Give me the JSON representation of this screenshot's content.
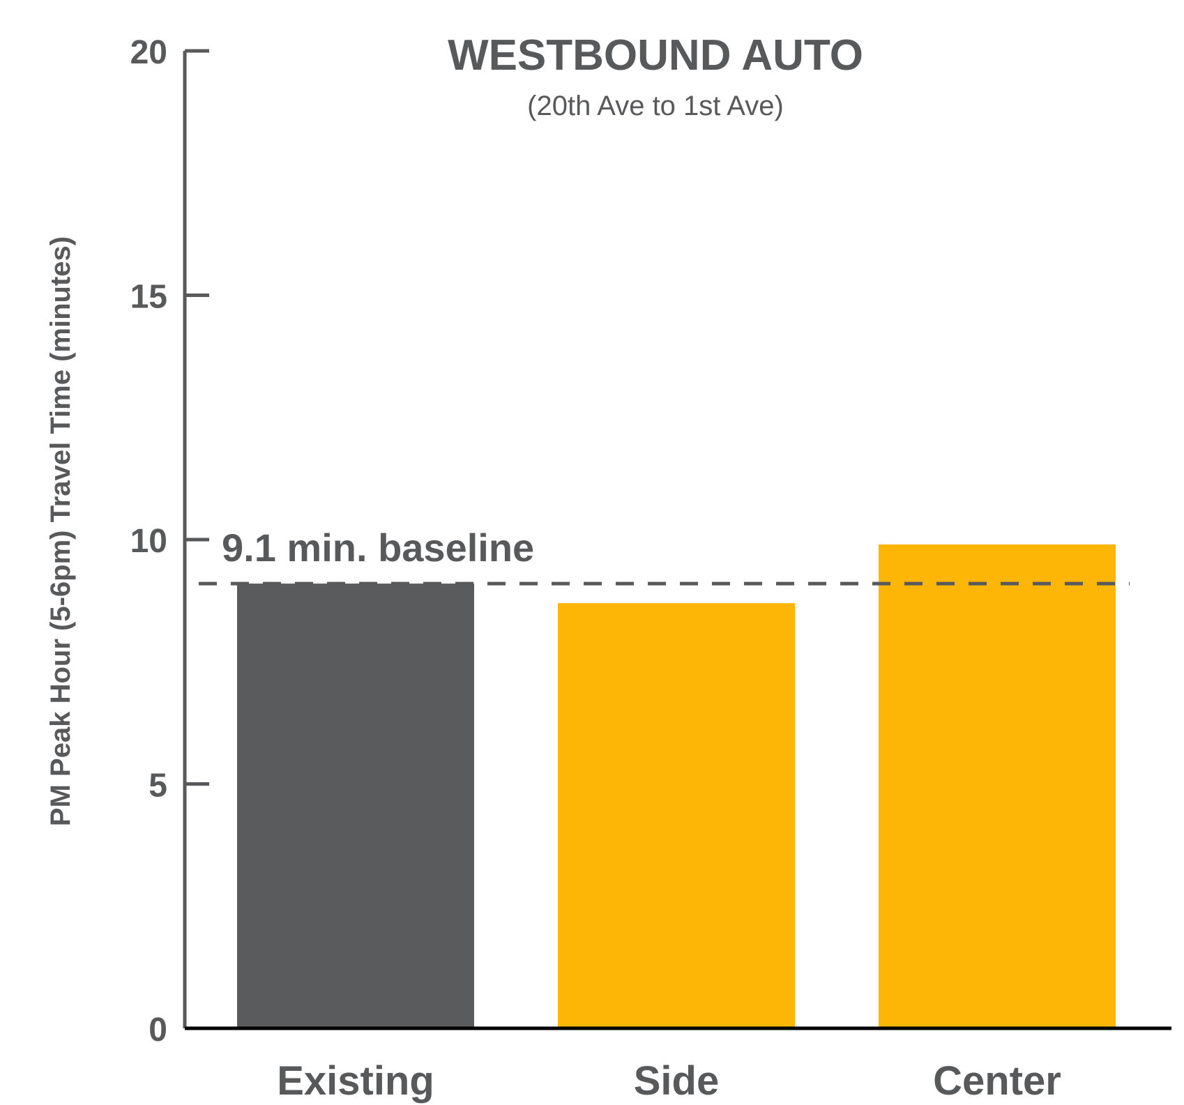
{
  "chart_data": {
    "type": "bar",
    "title": "WESTBOUND AUTO",
    "subtitle": "(20th Ave to 1st Ave)",
    "ylabel": "PM Peak Hour (5-6pm) Travel Time (minutes)",
    "xlabel": "",
    "categories": [
      "Existing",
      "Side",
      "Center"
    ],
    "values": [
      9.1,
      8.7,
      9.9
    ],
    "colors": [
      "#5a5b5d",
      "#fdb605",
      "#fdb605"
    ],
    "ylim": [
      0,
      20
    ],
    "yticks": [
      "0",
      "5",
      "10",
      "15",
      "20"
    ],
    "grid": false,
    "reference_line": {
      "value": 9.1,
      "label": "9.1 min. baseline",
      "style": "dashed",
      "color": "#58595b"
    }
  }
}
